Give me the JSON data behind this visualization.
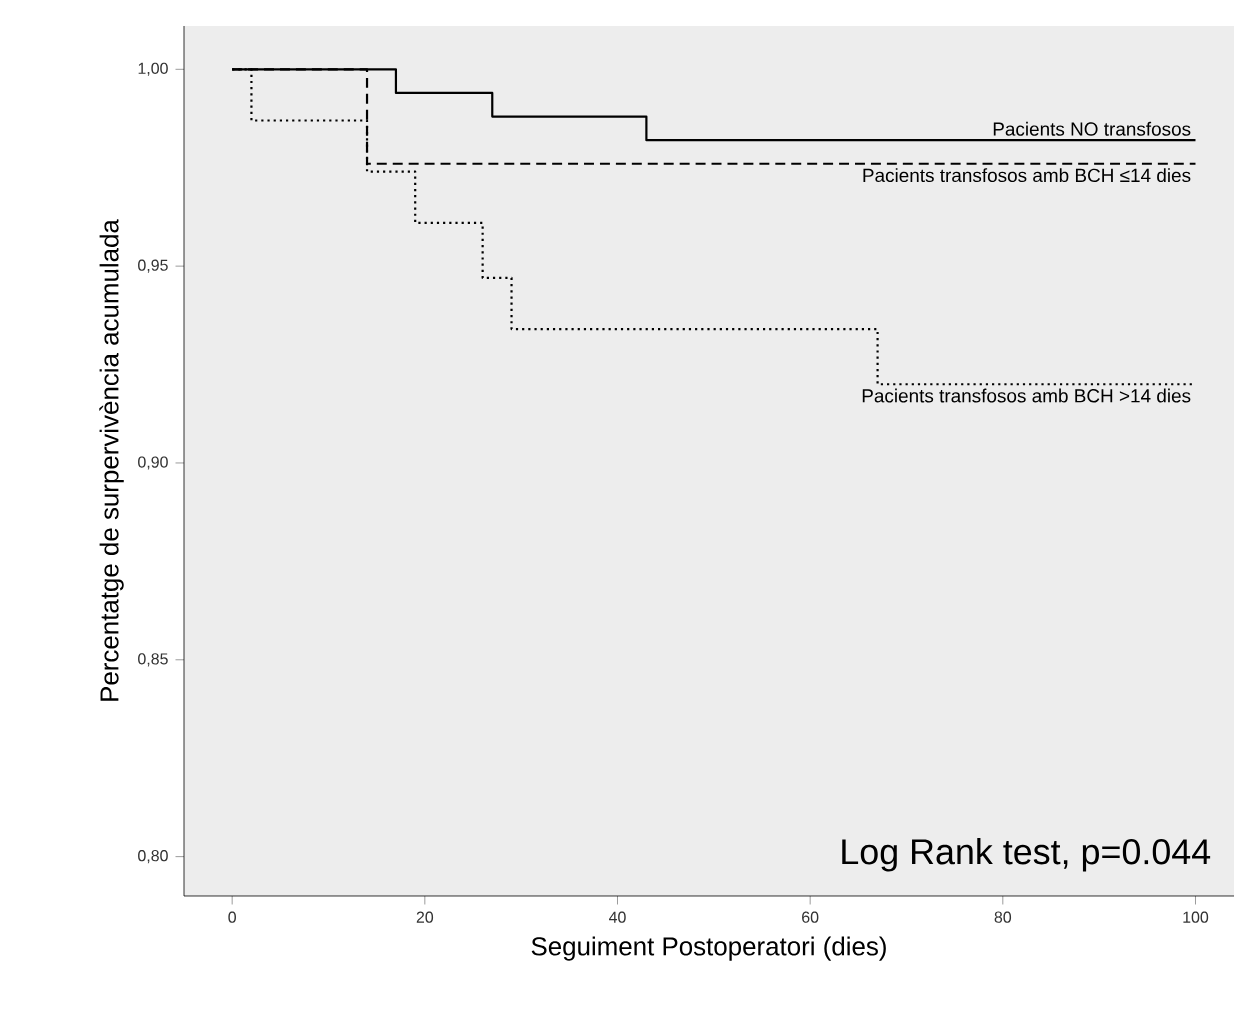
{
  "chart_data": {
    "type": "step",
    "xlabel": "Seguiment Postoperatori (dies)",
    "ylabel": "Percentatge de surpervivència acumulada",
    "xlim": [
      -5,
      104
    ],
    "ylim": [
      0.79,
      1.011
    ],
    "xticks": [
      0,
      20,
      40,
      60,
      80,
      100
    ],
    "yticks": [
      {
        "value": 0.8,
        "label": "0,80"
      },
      {
        "value": 0.85,
        "label": "0,85"
      },
      {
        "value": 0.9,
        "label": "0,90"
      },
      {
        "value": 0.95,
        "label": "0,95"
      },
      {
        "value": 1.0,
        "label": "1,00"
      }
    ],
    "series": [
      {
        "name": "Pacients NO transfosos",
        "color": "#000000",
        "line_style": "solid",
        "x": [
          0,
          17,
          27,
          43,
          100
        ],
        "values": [
          1.0,
          0.994,
          0.988,
          0.982,
          0.982
        ]
      },
      {
        "name": "Pacients transfosos amb BCH ≤14 dies",
        "color": "#000000",
        "line_style": "dashed",
        "x": [
          0,
          14,
          100
        ],
        "values": [
          1.0,
          0.976,
          0.976
        ]
      },
      {
        "name": "Pacients transfosos amb BCH >14 dies",
        "color": "#000000",
        "line_style": "dotted",
        "x": [
          0,
          2,
          14,
          19,
          26,
          29,
          67,
          100
        ],
        "values": [
          1.0,
          0.987,
          0.974,
          0.961,
          0.947,
          0.934,
          0.92,
          0.92
        ]
      }
    ],
    "annotations": [
      "Log Rank test, p=0.044"
    ],
    "grid": false,
    "legend": false
  }
}
